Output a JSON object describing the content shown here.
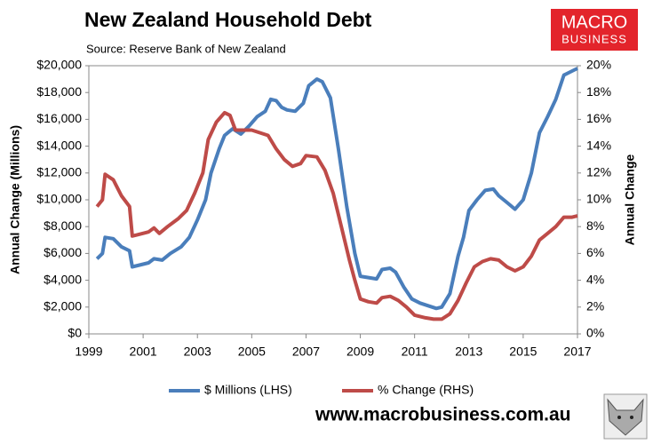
{
  "chart_data": {
    "type": "line",
    "title": "New Zealand Household Debt",
    "subtitle": "Source: Reserve Bank of New Zealand",
    "ylabel": "Annual Change (Millions)",
    "y2label": "Annual Change",
    "xlim": [
      1999,
      2017
    ],
    "xticks": [
      1999,
      2001,
      2003,
      2005,
      2007,
      2009,
      2011,
      2013,
      2015,
      2017
    ],
    "ylim": [
      0,
      20000
    ],
    "yticks": [
      {
        "value": 0,
        "label": "$0"
      },
      {
        "value": 2000,
        "label": "$2,000"
      },
      {
        "value": 4000,
        "label": "$4,000"
      },
      {
        "value": 6000,
        "label": "$6,000"
      },
      {
        "value": 8000,
        "label": "$8,000"
      },
      {
        "value": 10000,
        "label": "$10,000"
      },
      {
        "value": 12000,
        "label": "$12,000"
      },
      {
        "value": 14000,
        "label": "$14,000"
      },
      {
        "value": 16000,
        "label": "$16,000"
      },
      {
        "value": 18000,
        "label": "$18,000"
      },
      {
        "value": 20000,
        "label": "$20,000"
      }
    ],
    "y2lim": [
      0,
      20
    ],
    "y2ticks": [
      {
        "value": 0,
        "label": "0%"
      },
      {
        "value": 2,
        "label": "2%"
      },
      {
        "value": 4,
        "label": "4%"
      },
      {
        "value": 6,
        "label": "6%"
      },
      {
        "value": 8,
        "label": "8%"
      },
      {
        "value": 10,
        "label": "10%"
      },
      {
        "value": 12,
        "label": "12%"
      },
      {
        "value": 14,
        "label": "14%"
      },
      {
        "value": 16,
        "label": "16%"
      },
      {
        "value": 18,
        "label": "18%"
      },
      {
        "value": 20,
        "label": "20%"
      }
    ],
    "legend": "bottom",
    "series": [
      {
        "name": "$ Millions (LHS)",
        "color": "#4a7ebb",
        "x": [
          1999.3,
          1999.5,
          1999.6,
          1999.9,
          2000.2,
          2000.5,
          2000.6,
          2000.8,
          2001.2,
          2001.4,
          2001.7,
          2002.0,
          2002.4,
          2002.7,
          2003.0,
          2003.3,
          2003.5,
          2003.8,
          2004.0,
          2004.3,
          2004.6,
          2004.9,
          2005.2,
          2005.5,
          2005.7,
          2005.9,
          2006.1,
          2006.3,
          2006.6,
          2006.9,
          2007.1,
          2007.4,
          2007.6,
          2007.9,
          2008.2,
          2008.5,
          2008.8,
          2009.0,
          2009.3,
          2009.6,
          2009.8,
          2010.1,
          2010.3,
          2010.6,
          2010.9,
          2011.2,
          2011.5,
          2011.8,
          2012.0,
          2012.3,
          2012.6,
          2012.8,
          2013.0,
          2013.3,
          2013.6,
          2013.9,
          2014.1,
          2014.4,
          2014.7,
          2015.0,
          2015.3,
          2015.6,
          2015.9,
          2016.2,
          2016.5,
          2016.8,
          2017.0
        ],
        "values": [
          5600,
          6000,
          7200,
          7100,
          6500,
          6200,
          5000,
          5100,
          5300,
          5600,
          5500,
          6000,
          6500,
          7200,
          8500,
          10000,
          12000,
          13800,
          14800,
          15300,
          14900,
          15500,
          16200,
          16600,
          17500,
          17400,
          16900,
          16700,
          16600,
          17200,
          18500,
          19000,
          18800,
          17600,
          13700,
          9500,
          6000,
          4300,
          4200,
          4100,
          4800,
          4900,
          4600,
          3500,
          2600,
          2300,
          2100,
          1900,
          2000,
          3000,
          5800,
          7200,
          9200,
          10000,
          10700,
          10800,
          10300,
          9800,
          9300,
          10000,
          12000,
          15000,
          16200,
          17500,
          19300,
          19600,
          19800
        ]
      },
      {
        "name": "% Change (RHS)",
        "color": "#be4b48",
        "axis": "y2",
        "x": [
          1999.3,
          1999.5,
          1999.6,
          1999.9,
          2000.2,
          2000.5,
          2000.6,
          2000.8,
          2001.2,
          2001.4,
          2001.6,
          2001.9,
          2002.3,
          2002.6,
          2002.9,
          2003.2,
          2003.4,
          2003.7,
          2004.0,
          2004.2,
          2004.4,
          2004.7,
          2005.0,
          2005.3,
          2005.6,
          2005.9,
          2006.2,
          2006.5,
          2006.8,
          2007.0,
          2007.4,
          2007.7,
          2008.0,
          2008.3,
          2008.6,
          2008.8,
          2009.0,
          2009.3,
          2009.6,
          2009.8,
          2010.1,
          2010.4,
          2010.7,
          2011.0,
          2011.4,
          2011.7,
          2012.0,
          2012.3,
          2012.6,
          2012.9,
          2013.2,
          2013.5,
          2013.8,
          2014.1,
          2014.4,
          2014.7,
          2015.0,
          2015.3,
          2015.6,
          2015.9,
          2016.2,
          2016.5,
          2016.8,
          2017.0
        ],
        "values": [
          9.5,
          10,
          11.9,
          11.5,
          10.3,
          9.5,
          7.3,
          7.4,
          7.6,
          7.9,
          7.5,
          8.0,
          8.6,
          9.2,
          10.5,
          12.0,
          14.5,
          15.8,
          16.5,
          16.3,
          15.2,
          15.2,
          15.2,
          15.0,
          14.8,
          13.8,
          13.0,
          12.5,
          12.7,
          13.3,
          13.2,
          12.2,
          10.5,
          8.0,
          5.5,
          4.0,
          2.6,
          2.4,
          2.3,
          2.7,
          2.8,
          2.5,
          2.0,
          1.4,
          1.2,
          1.1,
          1.1,
          1.5,
          2.5,
          3.8,
          5.0,
          5.4,
          5.6,
          5.5,
          5.0,
          4.7,
          5.0,
          5.8,
          7.0,
          7.5,
          8.0,
          8.7,
          8.7,
          8.8
        ]
      }
    ]
  },
  "branding": {
    "logo_top": "MACRO",
    "logo_bottom": "BUSINESS",
    "website": "www.macrobusiness.com.au"
  }
}
